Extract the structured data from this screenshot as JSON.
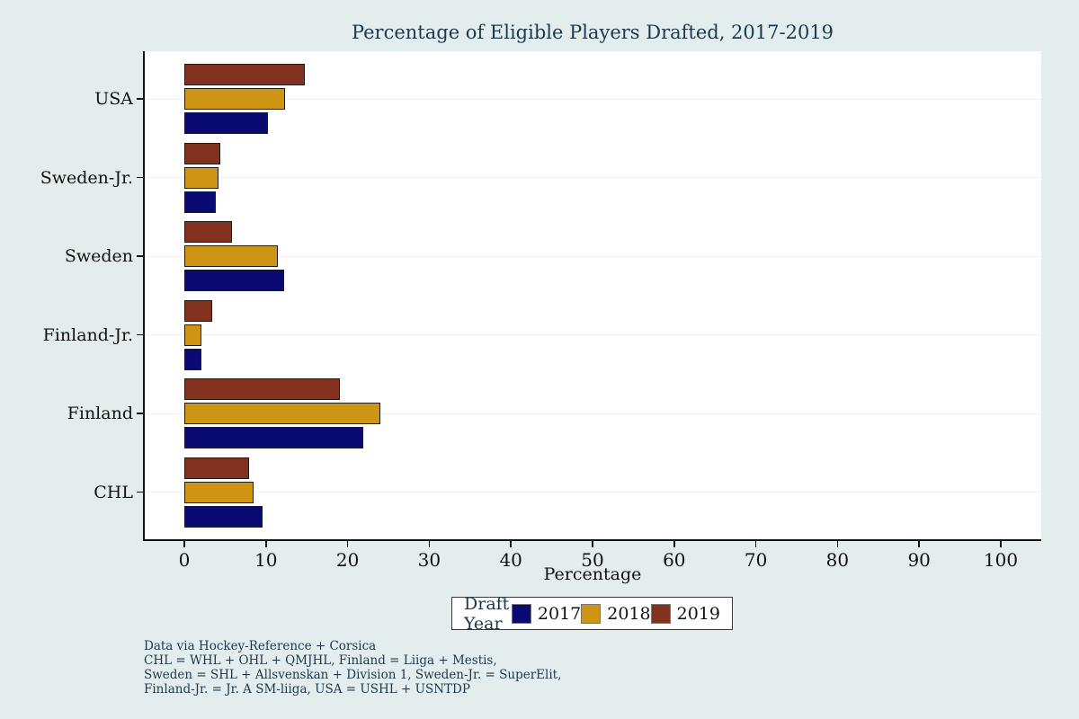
{
  "title": "Percentage of Eligible Players Drafted, 2017-2019",
  "chart_data": {
    "type": "bar",
    "orientation": "horizontal",
    "title": "Percentage of Eligible Players Drafted, 2017-2019",
    "xlabel": "Percentage",
    "ylabel": "",
    "xlim": [
      -5,
      105
    ],
    "xticks": [
      0,
      10,
      20,
      30,
      40,
      50,
      60,
      70,
      80,
      90,
      100
    ],
    "grid": "faint horizontal lines at each category",
    "categories_top_to_bottom": [
      "USA",
      "Sweden-Jr.",
      "Sweden",
      "Finland-Jr.",
      "Finland",
      "CHL"
    ],
    "series": [
      {
        "name": "2017",
        "color": "#0A0A73",
        "values": [
          10.2,
          3.9,
          12.2,
          2.1,
          21.9,
          9.6
        ]
      },
      {
        "name": "2018",
        "color": "#CE9414",
        "values": [
          12.3,
          4.2,
          11.4,
          2.1,
          24.0,
          8.5
        ]
      },
      {
        "name": "2019",
        "color": "#833220",
        "values": [
          14.8,
          4.4,
          5.8,
          3.4,
          19.0,
          7.9
        ]
      }
    ],
    "bar_order_within_group_top_to_bottom": [
      "2019",
      "2018",
      "2017"
    ],
    "legend_title": "Draft Year",
    "legend_position": "bottom-center"
  },
  "legend": {
    "title": "Draft Year"
  },
  "footnotes": [
    "Data via Hockey-Reference + Corsica",
    "CHL = WHL + OHL + QMJHL, Finland = Liiga + Mestis,",
    "Sweden = SHL + Allsvenskan + Division 1, Sweden-Jr. = SuperElit,",
    "Finland-Jr. = Jr. A SM-liiga, USA = USHL + USNTDP"
  ],
  "colors": {
    "background": "#E4EDED",
    "plot_background": "#FFFFFF",
    "title_text": "#1B394E",
    "footnote_text": "#1B394E",
    "axis_line": "#121212",
    "bar_border": "#1C1C1C",
    "gridline": "#ECF1F1"
  }
}
